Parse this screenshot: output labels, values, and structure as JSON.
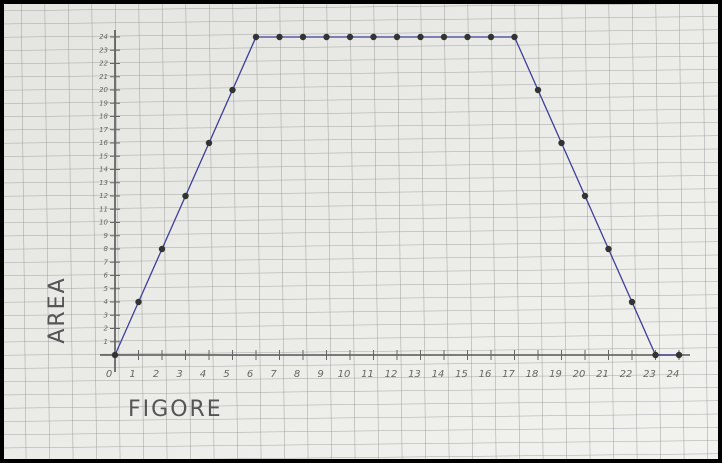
{
  "chart_data": {
    "type": "line",
    "xlabel": "FIGORE",
    "ylabel": "AREA",
    "x": [
      0,
      1,
      2,
      3,
      4,
      5,
      6,
      7,
      8,
      9,
      10,
      11,
      12,
      13,
      14,
      15,
      16,
      17,
      18,
      19,
      20,
      21,
      22,
      23,
      24
    ],
    "series": [
      {
        "color": "#3c3f9a",
        "values": [
          0,
          4,
          8,
          12,
          16,
          20,
          24,
          24,
          24,
          24,
          24,
          24,
          24,
          24,
          24,
          24,
          24,
          24,
          20,
          16,
          12,
          8,
          4,
          0,
          0
        ]
      }
    ],
    "xlim": [
      0,
      24
    ],
    "ylim": [
      0,
      24
    ],
    "xticks": [
      0,
      1,
      2,
      3,
      4,
      5,
      6,
      7,
      8,
      9,
      10,
      11,
      12,
      13,
      14,
      15,
      16,
      17,
      18,
      19,
      20,
      21,
      22,
      23,
      24
    ],
    "yticks": [
      1,
      2,
      3,
      4,
      5,
      6,
      7,
      8,
      9,
      10,
      11,
      12,
      13,
      14,
      15,
      16,
      17,
      18,
      19,
      20,
      21,
      22,
      23,
      24
    ]
  }
}
